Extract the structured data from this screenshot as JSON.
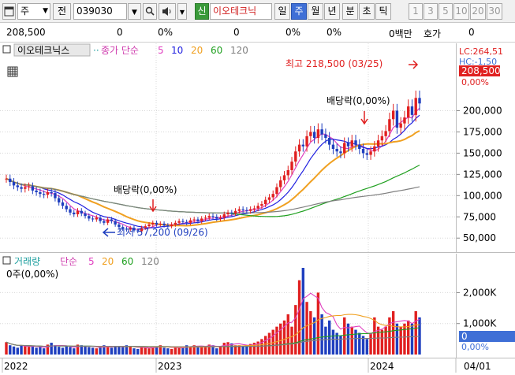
{
  "toolbar": {
    "window_icon": "window-icon",
    "period_type": "주",
    "prev_label": "전",
    "code": "039030",
    "dropdown_icon": "chevron-down-icon",
    "speaker_icon": "speaker-icon",
    "new_badge": "신",
    "name": "이오테크닉",
    "periods": [
      "일",
      "주",
      "월",
      "년",
      "분",
      "초",
      "틱"
    ],
    "active_period": "주",
    "minutes": [
      "1",
      "3",
      "5",
      "10",
      "20",
      "30"
    ]
  },
  "quote": {
    "price": "208,500",
    "change": "0",
    "change_pct": "0%",
    "volume": "0",
    "volume_pct": "0%",
    "rate": "0%",
    "amount": "0백만",
    "hoga_label": "호가",
    "hoga_value": "0"
  },
  "price_panel": {
    "stock_label": "이오테크닉스",
    "ma_label": "종가 단순",
    "ma_periods": [
      "5",
      "10",
      "20",
      "60",
      "120"
    ],
    "high_label": "최고 218,500 (03/25)",
    "low_label": "최저 57,200 (09/26)",
    "dividend_label_1": "배당락(0,00%)",
    "dividend_label_2": "배당락(0,00%)",
    "lc_label": "LC:264,51",
    "hc_label": "HC:-1,50",
    "current_price": "208,500",
    "current_pct": "0,00%"
  },
  "volume_panel": {
    "label": "거래량",
    "ma_label": "단순",
    "ma_periods": [
      "5",
      "20",
      "60",
      "120"
    ],
    "value_label": "0주(0,00%)",
    "current_volume": "0",
    "current_pct": "0,00%"
  },
  "x_axis": {
    "labels": [
      "2022",
      "2023",
      "2024"
    ],
    "right_label": "04/01"
  },
  "colors": {
    "up": "#e02020",
    "down": "#1f3fbf",
    "ma5": "#e040c0",
    "ma10": "#2020e0",
    "ma20": "#f0a020",
    "ma60": "#20a020",
    "ma120": "#808080",
    "highlight": "#3f6fd6"
  },
  "chart_data": {
    "type": "candlestick",
    "price_axis": {
      "ticks": [
        "200,000",
        "175,000",
        "150,000",
        "125,000",
        "100,000",
        "75,000",
        "50,000"
      ],
      "range": [
        40000,
        270000
      ]
    },
    "volume_axis": {
      "ticks": [
        "2,000K",
        "1,000K"
      ],
      "range": [
        0,
        2800
      ]
    },
    "x_axis": [
      "2022",
      "2023",
      "2024"
    ],
    "series_names": [
      "종가 단순 5",
      "10",
      "20",
      "60",
      "120",
      "거래량"
    ],
    "candles_note": "weekly OHLC, Jan 2022 – Mar 2024",
    "close": [
      120000,
      116000,
      112000,
      110000,
      108000,
      110000,
      111000,
      106000,
      104000,
      102000,
      101000,
      104000,
      103000,
      97000,
      92000,
      88000,
      84000,
      80000,
      78000,
      82000,
      79000,
      76000,
      73000,
      72000,
      74000,
      70000,
      68000,
      72000,
      70000,
      66000,
      63000,
      61000,
      60000,
      62000,
      59000,
      58000,
      62000,
      64000,
      66000,
      68000,
      66000,
      67000,
      65000,
      64000,
      66000,
      68000,
      70000,
      69000,
      68000,
      71000,
      72000,
      70000,
      73000,
      74000,
      76000,
      75000,
      73000,
      74000,
      78000,
      80000,
      79000,
      82000,
      84000,
      83000,
      82000,
      84000,
      85000,
      88000,
      90000,
      95000,
      98000,
      102000,
      110000,
      118000,
      124000,
      130000,
      140000,
      152000,
      160000,
      158000,
      170000,
      175000,
      168000,
      178000,
      172000,
      168000,
      160000,
      155000,
      152000,
      150000,
      162000,
      158000,
      165000,
      160000,
      155000,
      150000,
      148000,
      152000,
      158000,
      165000,
      170000,
      176000,
      190000,
      200000,
      180000,
      185000,
      192000,
      205000,
      195000,
      215000,
      208500
    ],
    "volume": [
      400,
      300,
      260,
      220,
      300,
      280,
      250,
      260,
      220,
      240,
      200,
      320,
      380,
      300,
      250,
      220,
      280,
      240,
      200,
      320,
      300,
      260,
      240,
      220,
      200,
      260,
      300,
      240,
      220,
      280,
      260,
      240,
      300,
      250,
      200,
      180,
      260,
      220,
      200,
      240,
      260,
      300,
      220,
      200,
      180,
      260,
      240,
      220,
      300,
      260,
      300,
      280,
      240,
      260,
      320,
      300,
      200,
      260,
      380,
      400,
      360,
      300,
      300,
      260,
      300,
      340,
      380,
      420,
      500,
      600,
      700,
      800,
      900,
      1000,
      1100,
      1300,
      900,
      1600,
      2400,
      2800,
      1700,
      1400,
      1200,
      2000,
      1300,
      900,
      1100,
      800,
      700,
      600,
      1200,
      1000,
      900,
      800,
      700,
      600,
      500,
      700,
      1200,
      900,
      800,
      900,
      1200,
      1400,
      1000,
      900,
      1000,
      1100,
      1000,
      1400,
      1200
    ]
  }
}
